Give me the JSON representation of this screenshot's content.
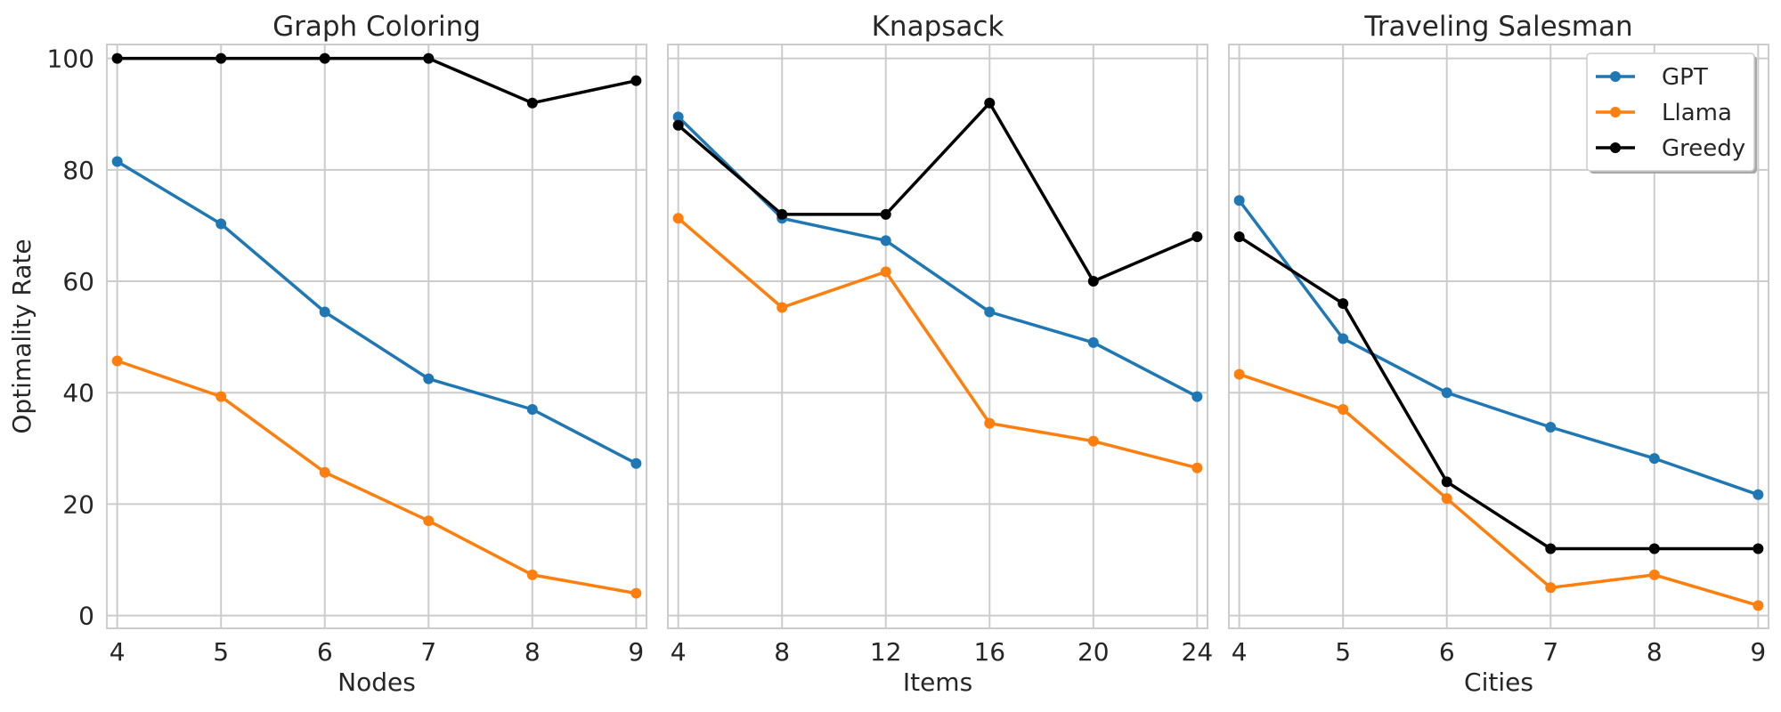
{
  "figure": {
    "ylabel": "Optimality Rate"
  },
  "colors": {
    "GPT": "#1f77b4",
    "Llama": "#ff7f0e",
    "Greedy": "#000000"
  },
  "legend": {
    "entries": [
      "GPT",
      "Llama",
      "Greedy"
    ],
    "location": "top-right of Traveling Salesman panel"
  },
  "chart_data": [
    {
      "type": "line",
      "title": "Graph Coloring",
      "xlabel": "Nodes",
      "ylabel": "Optimality Rate",
      "x": [
        4,
        5,
        6,
        7,
        8,
        9
      ],
      "x_ticks": [
        "4",
        "5",
        "6",
        "7",
        "8",
        "9"
      ],
      "xlim": [
        3.9,
        9.1
      ],
      "ylim": [
        -2.3,
        102.5
      ],
      "y_ticks": [
        0,
        20,
        40,
        60,
        80,
        100
      ],
      "grid": true,
      "series": [
        {
          "name": "GPT",
          "values": [
            81.5,
            70.3,
            54.5,
            42.5,
            37.0,
            27.3
          ]
        },
        {
          "name": "Llama",
          "values": [
            45.7,
            39.3,
            25.7,
            17.0,
            7.3,
            4.0
          ]
        },
        {
          "name": "Greedy",
          "values": [
            100,
            100,
            100,
            100,
            92,
            96
          ]
        }
      ]
    },
    {
      "type": "line",
      "title": "Knapsack",
      "xlabel": "Items",
      "ylabel": "",
      "x": [
        4,
        8,
        12,
        16,
        20,
        24
      ],
      "x_ticks": [
        "4",
        "8",
        "12",
        "16",
        "20",
        "24"
      ],
      "xlim": [
        3.6,
        24.4
      ],
      "ylim": [
        -2.3,
        102.5
      ],
      "y_ticks": [
        0,
        20,
        40,
        60,
        80,
        100
      ],
      "grid": true,
      "series": [
        {
          "name": "GPT",
          "values": [
            89.5,
            71.3,
            67.3,
            54.5,
            49.0,
            39.3
          ]
        },
        {
          "name": "Llama",
          "values": [
            71.3,
            55.3,
            61.7,
            34.5,
            31.3,
            26.5
          ]
        },
        {
          "name": "Greedy",
          "values": [
            88,
            72,
            72,
            92,
            60,
            68
          ]
        }
      ]
    },
    {
      "type": "line",
      "title": "Traveling Salesman",
      "xlabel": "Cities",
      "ylabel": "",
      "x": [
        4,
        5,
        6,
        7,
        8,
        9
      ],
      "x_ticks": [
        "4",
        "5",
        "6",
        "7",
        "8",
        "9"
      ],
      "xlim": [
        3.9,
        9.1
      ],
      "ylim": [
        -2.3,
        102.5
      ],
      "y_ticks": [
        0,
        20,
        40,
        60,
        80,
        100
      ],
      "grid": true,
      "series": [
        {
          "name": "GPT",
          "values": [
            74.5,
            49.7,
            40.0,
            33.8,
            28.2,
            21.7
          ]
        },
        {
          "name": "Llama",
          "values": [
            43.3,
            37.0,
            21.0,
            5.0,
            7.3,
            1.8
          ]
        },
        {
          "name": "Greedy",
          "values": [
            68,
            56,
            24,
            12,
            12,
            12
          ]
        }
      ]
    }
  ]
}
